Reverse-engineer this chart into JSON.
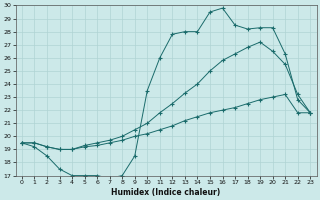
{
  "xlabel": "Humidex (Indice chaleur)",
  "xlim": [
    -0.5,
    23.5
  ],
  "ylim": [
    17,
    30
  ],
  "xticks": [
    0,
    1,
    2,
    3,
    4,
    5,
    6,
    7,
    8,
    9,
    10,
    11,
    12,
    13,
    14,
    15,
    16,
    17,
    18,
    19,
    20,
    21,
    22,
    23
  ],
  "yticks": [
    17,
    18,
    19,
    20,
    21,
    22,
    23,
    24,
    25,
    26,
    27,
    28,
    29,
    30
  ],
  "bg_color": "#cce9e9",
  "line_color": "#1a6b6b",
  "grid_color": "#b0d4d4",
  "curve1_x": [
    0,
    1,
    2,
    3,
    4,
    5,
    6,
    7,
    8,
    9,
    10,
    11,
    12,
    13,
    14,
    15,
    16,
    17,
    18,
    19,
    20,
    21,
    22,
    23
  ],
  "curve1_y": [
    19.5,
    19.2,
    18.5,
    17.5,
    17.0,
    17.0,
    17.0,
    16.8,
    17.0,
    18.5,
    23.5,
    26.0,
    27.8,
    28.0,
    28.0,
    29.5,
    29.8,
    28.5,
    28.2,
    28.3,
    28.3,
    26.3,
    22.8,
    21.8
  ],
  "curve2_x": [
    0,
    1,
    2,
    3,
    4,
    5,
    6,
    7,
    8,
    9,
    10,
    11,
    12,
    13,
    14,
    15,
    16,
    17,
    18,
    19,
    20,
    21,
    22,
    23
  ],
  "curve2_y": [
    19.5,
    19.5,
    19.2,
    19.0,
    19.0,
    19.3,
    19.5,
    19.7,
    20.0,
    20.5,
    21.0,
    21.8,
    22.5,
    23.3,
    24.0,
    25.0,
    25.8,
    26.3,
    26.8,
    27.2,
    26.5,
    25.5,
    23.2,
    21.8
  ],
  "curve3_x": [
    0,
    1,
    2,
    3,
    4,
    5,
    6,
    7,
    8,
    9,
    10,
    11,
    12,
    13,
    14,
    15,
    16,
    17,
    18,
    19,
    20,
    21,
    22,
    23
  ],
  "curve3_y": [
    19.5,
    19.5,
    19.2,
    19.0,
    19.0,
    19.2,
    19.3,
    19.5,
    19.7,
    20.0,
    20.2,
    20.5,
    20.8,
    21.2,
    21.5,
    21.8,
    22.0,
    22.2,
    22.5,
    22.8,
    23.0,
    23.2,
    21.8,
    21.8
  ]
}
